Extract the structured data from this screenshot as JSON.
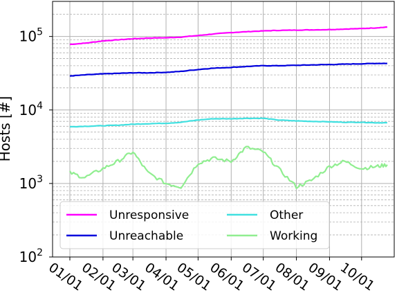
{
  "chart_data": {
    "type": "line",
    "title": "",
    "xlabel": "",
    "ylabel": "Hosts [#]",
    "yscale": "log",
    "ylim": [
      100,
      300000
    ],
    "grid": true,
    "legend": {
      "placement": "bottom-left",
      "columns": 2
    },
    "x_ticks": [
      "01/01",
      "02/01",
      "03/01",
      "04/01",
      "05/01",
      "06/01",
      "07/01",
      "08/01",
      "09/01",
      "10/01"
    ],
    "y_ticks": [
      {
        "value": 100,
        "base": "10",
        "exp": "2"
      },
      {
        "value": 1000,
        "base": "10",
        "exp": "3"
      },
      {
        "value": 10000,
        "base": "10",
        "exp": "4"
      },
      {
        "value": 100000,
        "base": "10",
        "exp": "5"
      }
    ],
    "x_dates": [
      "01/01",
      "01/15",
      "02/01",
      "02/15",
      "03/01",
      "03/15",
      "04/01",
      "04/15",
      "05/01",
      "05/15",
      "06/01",
      "06/15",
      "07/01",
      "07/15",
      "08/01",
      "08/15",
      "09/01",
      "09/15",
      "10/01",
      "10/15",
      "10/25"
    ],
    "series": [
      {
        "name": "Unresponsive",
        "color": "#ff00ff",
        "values": [
          78000,
          81000,
          87000,
          90000,
          93000,
          95000,
          96000,
          98000,
          103000,
          108000,
          113000,
          116000,
          119000,
          121000,
          122000,
          123000,
          124000,
          126000,
          128000,
          131000,
          134000
        ]
      },
      {
        "name": "Unreachable",
        "color": "#0000dd",
        "values": [
          29000,
          30000,
          31000,
          31500,
          32000,
          32000,
          32500,
          33500,
          35500,
          37000,
          38000,
          39000,
          40000,
          40000,
          40500,
          41000,
          41500,
          42000,
          42500,
          43000,
          43000
        ]
      },
      {
        "name": "Other",
        "color": "#40e0e0",
        "values": [
          5900,
          6000,
          6100,
          6200,
          6400,
          6500,
          6600,
          6800,
          7300,
          7600,
          7600,
          7700,
          7700,
          7300,
          7100,
          7000,
          6900,
          6800,
          6800,
          6700,
          6700
        ]
      },
      {
        "name": "Working",
        "color": "#90ee90",
        "values": [
          1400,
          1200,
          1600,
          2000,
          2700,
          1400,
          1000,
          900,
          1900,
          2200,
          2000,
          3100,
          2700,
          1600,
          900,
          1100,
          1700,
          2000,
          1600,
          1700,
          1800
        ]
      }
    ]
  }
}
